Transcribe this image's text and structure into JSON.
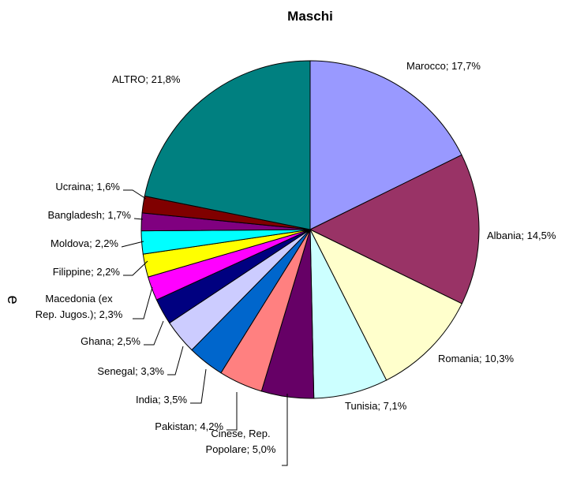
{
  "chart_data": {
    "type": "pie",
    "title": "Maschi",
    "side_text": "e",
    "values": [
      17.7,
      14.5,
      10.3,
      7.1,
      5.0,
      4.2,
      3.5,
      3.3,
      2.5,
      2.3,
      2.2,
      2.2,
      1.7,
      1.6,
      21.8
    ],
    "value_labels": [
      [
        "Marocco; 17,7%"
      ],
      [
        "Albania; 14,5%"
      ],
      [
        "Romania; 10,3%"
      ],
      [
        "Tunisia; 7,1%"
      ],
      [
        "Cinese, Rep.",
        "Popolare; 5,0%"
      ],
      [
        "Pakistan; 4,2%"
      ],
      [
        "India; 3,5%"
      ],
      [
        "Senegal; 3,3%"
      ],
      [
        "Ghana; 2,5%"
      ],
      [
        "Macedonia (ex",
        "Rep. Jugos.); 2,3%"
      ],
      [
        "Filippine; 2,2%"
      ],
      [
        "Moldova; 2,2%"
      ],
      [
        "Bangladesh; 1,7%"
      ],
      [
        "Ucraina; 1,6%"
      ],
      [
        "ALTRO; 21,8%"
      ]
    ],
    "colors": [
      "#9999ff",
      "#993366",
      "#ffffcc",
      "#ccffff",
      "#660066",
      "#ff8080",
      "#0066cc",
      "#ccccff",
      "#000080",
      "#ff00ff",
      "#ffff00",
      "#00ffff",
      "#800080",
      "#800000",
      "#008080"
    ]
  }
}
